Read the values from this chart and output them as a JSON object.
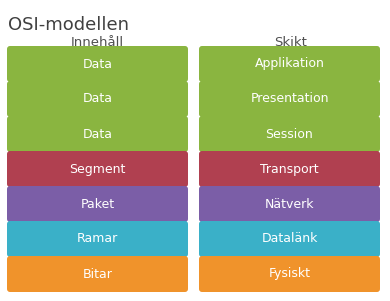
{
  "title": "OSI-modellen",
  "col1_header": "Innehåll",
  "col2_header": "Skikt",
  "layers": [
    {
      "left": "Data",
      "right": "Applikation",
      "color": "#8ab540"
    },
    {
      "left": "Data",
      "right": "Presentation",
      "color": "#8ab540"
    },
    {
      "left": "Data",
      "right": "Session",
      "color": "#8ab540"
    },
    {
      "left": "Segment",
      "right": "Transport",
      "color": "#b04050"
    },
    {
      "left": "Paket",
      "right": "Nätverk",
      "color": "#7b5ea7"
    },
    {
      "left": "Ramar",
      "right": "Datalänk",
      "color": "#3ab0c8"
    },
    {
      "left": "Bitar",
      "right": "Fysiskt",
      "color": "#f0932b"
    }
  ],
  "text_color": "#ffffff",
  "bg_color": "#ffffff",
  "title_color": "#404040",
  "header_color": "#505050",
  "title_fontsize": 13,
  "header_fontsize": 9.5,
  "label_fontsize": 9,
  "fig_width": 3.9,
  "fig_height": 3.01
}
